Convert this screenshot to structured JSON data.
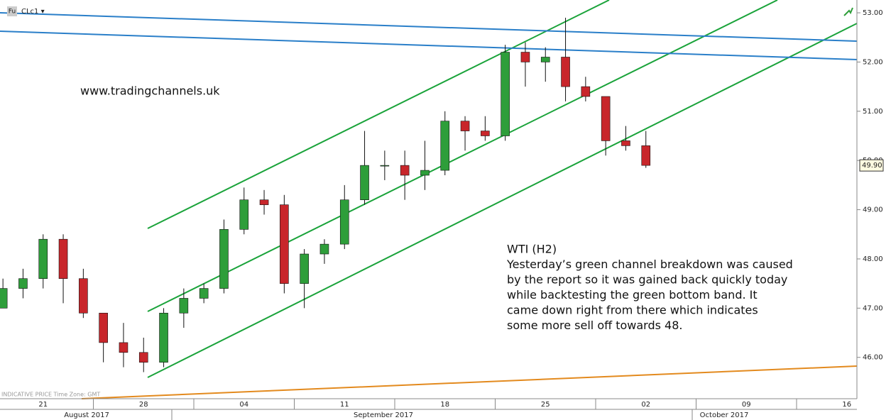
{
  "chart_data": {
    "type": "candlestick",
    "symbol_badge": "Fu",
    "symbol": "CLc1 ▾",
    "footer_note": "INDICATIVE PRICE   Time Zone: GMT",
    "website": "www.tradingchannels.uk",
    "annotation": [
      "WTI (H2)",
      "Yesterday’s green channel breakdown was caused",
      "by the report so it was gained back quickly today",
      "while backtesting the green bottom band. It",
      "came down right from there which indicates",
      "some more sell off towards 48."
    ],
    "categories": [
      "2017-08-21",
      "2017-08-22",
      "2017-08-23",
      "2017-08-24",
      "2017-08-25",
      "2017-08-28",
      "2017-08-29",
      "2017-08-30",
      "2017-08-31",
      "2017-09-01",
      "2017-09-04",
      "2017-09-05",
      "2017-09-06",
      "2017-09-07",
      "2017-09-08",
      "2017-09-11",
      "2017-09-12",
      "2017-09-13",
      "2017-09-14",
      "2017-09-15",
      "2017-09-18",
      "2017-09-19",
      "2017-09-20",
      "2017-09-21",
      "2017-09-22",
      "2017-09-25",
      "2017-09-26",
      "2017-09-27",
      "2017-09-28",
      "2017-09-29",
      "2017-10-02",
      "2017-10-03",
      "2017-10-04"
    ],
    "open": [
      47.0,
      47.4,
      47.6,
      48.4,
      47.6,
      46.9,
      46.3,
      46.1,
      45.9,
      46.9,
      47.2,
      47.4,
      48.6,
      49.2,
      49.1,
      47.5,
      48.1,
      48.3,
      49.2,
      49.9,
      49.9,
      49.7,
      49.8,
      50.8,
      50.6,
      50.5,
      52.2,
      52.0,
      52.1,
      51.5,
      51.3,
      50.4,
      50.3
    ],
    "high": [
      47.6,
      47.8,
      48.5,
      48.5,
      47.8,
      46.9,
      46.7,
      46.4,
      47.0,
      47.4,
      47.5,
      48.8,
      49.45,
      49.4,
      49.3,
      48.2,
      48.4,
      49.5,
      50.6,
      50.2,
      50.2,
      50.4,
      51.0,
      50.9,
      50.9,
      52.35,
      52.4,
      52.3,
      52.9,
      51.7,
      51.3,
      50.7,
      50.6
    ],
    "low": [
      47.0,
      47.2,
      47.4,
      47.1,
      46.8,
      45.9,
      45.8,
      45.7,
      45.8,
      46.6,
      47.1,
      47.3,
      48.5,
      48.9,
      47.3,
      47.0,
      47.9,
      48.2,
      49.1,
      49.6,
      49.2,
      49.4,
      49.7,
      50.2,
      50.4,
      50.4,
      51.5,
      51.6,
      51.2,
      51.2,
      50.1,
      50.2,
      49.85
    ],
    "close": [
      47.4,
      47.6,
      48.4,
      47.6,
      46.9,
      46.3,
      46.1,
      45.9,
      46.9,
      47.2,
      47.4,
      48.6,
      49.2,
      49.1,
      47.5,
      48.1,
      48.3,
      49.2,
      49.9,
      49.9,
      49.7,
      49.8,
      50.8,
      50.6,
      50.5,
      52.2,
      52.0,
      52.1,
      51.5,
      51.3,
      50.4,
      50.3,
      49.9
    ],
    "up_color": "#2e9e3a",
    "down_color": "#c8262b",
    "last_price": {
      "value": 49.9,
      "label": "49.90"
    },
    "ylim": [
      45.16,
      53.26
    ],
    "yticks": [
      {
        "value": 46,
        "label": "46.00"
      },
      {
        "value": 47,
        "label": "47.00"
      },
      {
        "value": 48,
        "label": "48.00"
      },
      {
        "value": 49,
        "label": "49.00"
      },
      {
        "value": 50,
        "label": "50.00"
      },
      {
        "value": 51,
        "label": "51.00"
      },
      {
        "value": 52,
        "label": "52.00"
      },
      {
        "value": 53,
        "label": "53.00"
      }
    ],
    "xticks": [
      {
        "value": "2017-08-21",
        "label": "21"
      },
      {
        "value": "2017-08-28",
        "label": "28"
      },
      {
        "value": "2017-09-04",
        "label": "04"
      },
      {
        "value": "2017-09-11",
        "label": "11"
      },
      {
        "value": "2017-09-18",
        "label": "18"
      },
      {
        "value": "2017-09-25",
        "label": "25"
      },
      {
        "value": "2017-10-02",
        "label": "02"
      },
      {
        "value": "2017-10-09",
        "label": "09"
      },
      {
        "value": "2017-10-16",
        "label": "16"
      }
    ],
    "months": [
      "August 2017",
      "September 2017",
      "October 2017"
    ]
  }
}
